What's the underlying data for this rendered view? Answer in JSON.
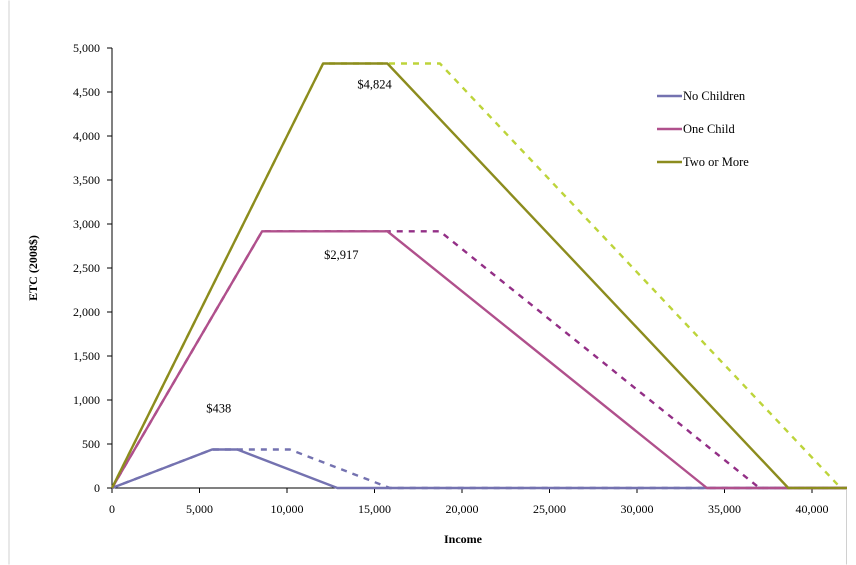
{
  "chart_data": {
    "type": "line",
    "title": "",
    "xlabel": "Income",
    "ylabel": "ETC (2008$)",
    "xlim": [
      0,
      42000
    ],
    "ylim": [
      0,
      5000
    ],
    "x_ticks": [
      0,
      5000,
      10000,
      15000,
      20000,
      25000,
      30000,
      35000,
      40000
    ],
    "x_tick_labels": [
      "0",
      "5,000",
      "10,000",
      "15,000",
      "20,000",
      "25,000",
      "30,000",
      "35,000",
      "40,000"
    ],
    "y_ticks": [
      0,
      500,
      1000,
      1500,
      2000,
      2500,
      3000,
      3500,
      4000,
      4500,
      5000
    ],
    "y_tick_labels": [
      "0",
      "500",
      "1,000",
      "1,500",
      "2,000",
      "2,500",
      "3,000",
      "3,500",
      "4,000",
      "4,500",
      "5,000"
    ],
    "grid": false,
    "legend_position": "top-right",
    "series": [
      {
        "name": "No Children",
        "color": "#7472b0",
        "style": "solid",
        "x": [
          0,
          5720,
          7160,
          12880,
          42000
        ],
        "y": [
          0,
          438,
          438,
          0,
          0
        ]
      },
      {
        "color": "#7472b0",
        "style": "dashed",
        "x": [
          0,
          5720,
          10160,
          15880,
          42000
        ],
        "y": [
          0,
          438,
          438,
          0,
          0
        ]
      },
      {
        "name": "One Child",
        "color": "#b0508c",
        "style": "solid",
        "x": [
          0,
          8580,
          15740,
          33995,
          42000
        ],
        "y": [
          0,
          2917,
          2917,
          0,
          0
        ]
      },
      {
        "color": "#932f86",
        "style": "dashed",
        "x": [
          0,
          8580,
          18740,
          36995,
          42000
        ],
        "y": [
          0,
          2917,
          2917,
          0,
          0
        ]
      },
      {
        "name": "Two or More",
        "color": "#8c8c1e",
        "style": "solid",
        "x": [
          0,
          12060,
          15740,
          38646,
          42000
        ],
        "y": [
          0,
          4824,
          4824,
          0,
          0
        ]
      },
      {
        "color": "#bdd43a",
        "style": "dashed",
        "x": [
          0,
          12060,
          18740,
          41646,
          42000
        ],
        "y": [
          0,
          4824,
          4824,
          0,
          0
        ]
      }
    ],
    "annotations": [
      {
        "text": "$4,824",
        "x": 15000,
        "y": 4540
      },
      {
        "text": "$2,917",
        "x": 13100,
        "y": 2600
      },
      {
        "text": "$438",
        "x": 6100,
        "y": 860
      }
    ],
    "legend": [
      {
        "label": "No Children",
        "color": "#7472b0"
      },
      {
        "label": "One Child",
        "color": "#b0508c"
      },
      {
        "label": "Two or More",
        "color": "#8c8c1e"
      }
    ]
  }
}
